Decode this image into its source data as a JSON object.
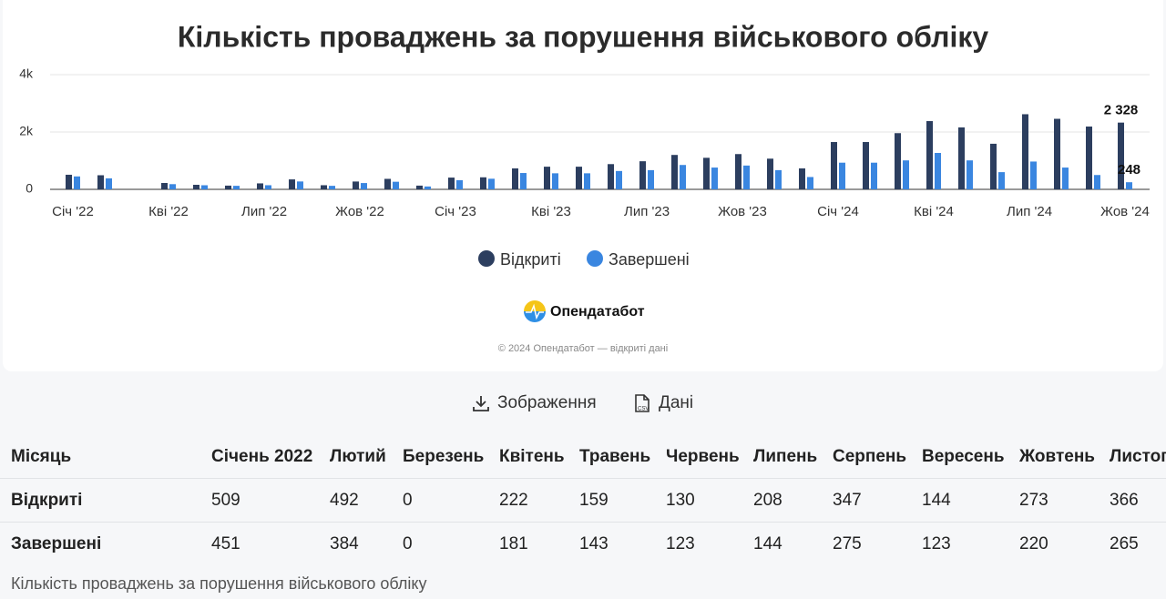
{
  "chart_data": {
    "type": "bar",
    "title": "Кількість проваджень за порушення військового обліку",
    "categories": [
      "Січ '22",
      null,
      null,
      "Кві '22",
      null,
      null,
      "Лип '22",
      null,
      null,
      "Жов '22",
      null,
      null,
      "Січ '23",
      null,
      null,
      "Кві '23",
      null,
      null,
      "Лип '23",
      null,
      null,
      "Жов '23",
      null,
      null,
      "Січ '24",
      null,
      null,
      "Кві '24",
      null,
      null,
      "Лип '24",
      null,
      null,
      "Жов '24"
    ],
    "series": [
      {
        "name": "Відкриті",
        "color": "#2c3e5f",
        "values": [
          509,
          492,
          0,
          222,
          159,
          130,
          208,
          347,
          144,
          273,
          366,
          130,
          410,
          420,
          730,
          790,
          790,
          880,
          980,
          1200,
          1100,
          1230,
          1070,
          730,
          1650,
          1650,
          1960,
          2380,
          2160,
          1590,
          2620,
          2460,
          2190,
          2328
        ],
        "value_labels": [
          null,
          null,
          null,
          null,
          null,
          null,
          null,
          null,
          null,
          null,
          null,
          null,
          null,
          null,
          null,
          null,
          null,
          null,
          null,
          null,
          null,
          null,
          null,
          null,
          null,
          null,
          null,
          null,
          null,
          null,
          null,
          null,
          null,
          "2 328"
        ]
      },
      {
        "name": "Завершені",
        "color": "#3a86e0",
        "values": [
          451,
          384,
          0,
          181,
          143,
          123,
          144,
          275,
          123,
          220,
          265,
          100,
          320,
          370,
          570,
          560,
          560,
          640,
          670,
          850,
          760,
          830,
          670,
          430,
          930,
          930,
          1010,
          1270,
          1010,
          600,
          970,
          760,
          500,
          248
        ]
      }
    ],
    "ylim": [
      0,
      4000
    ],
    "yticks": [
      0,
      {
        "value": 2000,
        "label": "2k"
      },
      {
        "value": 4000,
        "label": "4k"
      }
    ],
    "grid": true
  },
  "brand": "Опендатабот",
  "copyright": "© 2024 Опендатабот — відкриті дані",
  "buttons": [
    "Зображення",
    "Дані"
  ],
  "table": {
    "header": [
      "Місяць",
      "Січень 2022",
      "Лютий",
      "Березень",
      "Квітень",
      "Травень",
      "Червень",
      "Липень",
      "Серпень",
      "Вересень",
      "Жовтень",
      "Листопад"
    ],
    "rows": [
      [
        "Відкриті",
        "509",
        "492",
        "0",
        "222",
        "159",
        "130",
        "208",
        "347",
        "144",
        "273",
        "366"
      ],
      [
        "Завершені",
        "451",
        "384",
        "0",
        "181",
        "143",
        "123",
        "144",
        "275",
        "123",
        "220",
        "265"
      ]
    ],
    "caption": "Кількість проваджень за порушення військового обліку"
  }
}
